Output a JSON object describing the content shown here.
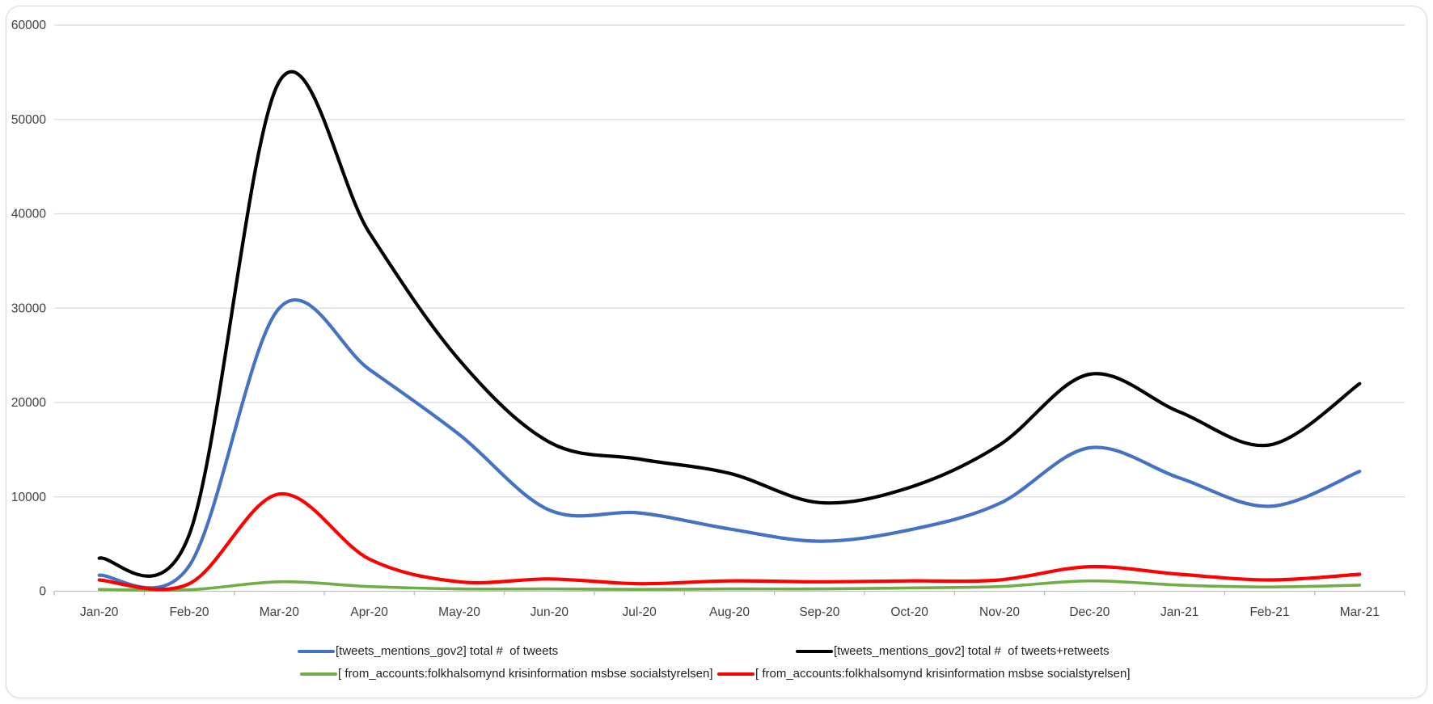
{
  "chart_data": {
    "type": "line",
    "x": [
      "Jan-20",
      "Feb-20",
      "Mar-20",
      "Apr-20",
      "May-20",
      "Jun-20",
      "Jul-20",
      "Aug-20",
      "Sep-20",
      "Oct-20",
      "Nov-20",
      "Dec-20",
      "Jan-21",
      "Feb-21",
      "Mar-21"
    ],
    "series": [
      {
        "name": "[tweets_mentions_gov2] total #  of tweets",
        "color": "#4472C4",
        "values": [
          1700,
          2700,
          30000,
          23500,
          16600,
          8600,
          8300,
          6600,
          5300,
          6500,
          9300,
          15200,
          12000,
          9000,
          12700
        ]
      },
      {
        "name": "[tweets_mentions_gov2] total #  of tweets+retweets",
        "color": "#000000",
        "values": [
          3500,
          6000,
          54000,
          38000,
          24500,
          15800,
          14000,
          12500,
          9400,
          11000,
          15500,
          23000,
          19000,
          15500,
          22000
        ]
      },
      {
        "name": "[ from_accounts:folkhalsomynd krisinformation msbse socialstyrelsen]",
        "color": "#70AD47",
        "values": [
          200,
          150,
          1000,
          500,
          250,
          250,
          200,
          250,
          250,
          350,
          500,
          1100,
          650,
          450,
          650
        ]
      },
      {
        "name": "[ from_accounts:folkhalsomynd krisinformation msbse socialstyrelsen]",
        "color": "#FF0000",
        "values": [
          1200,
          800,
          10300,
          3400,
          1000,
          1300,
          800,
          1100,
          1000,
          1100,
          1200,
          2600,
          1800,
          1200,
          1800
        ]
      }
    ],
    "title": "",
    "xlabel": "",
    "ylabel": "",
    "ylim": [
      0,
      60000
    ],
    "yticks": [
      "0",
      "10000",
      "20000",
      "30000",
      "40000",
      "50000",
      "60000"
    ],
    "grid": "horizontal",
    "legend_position": "bottom",
    "smoothed": true
  },
  "style": {
    "gridline_color": "#d9d9d9",
    "axis_color": "#bfbfbf",
    "tick_label_color": "#3f3f3f",
    "background": "#ffffff",
    "card_border": "#d9d9d9"
  }
}
